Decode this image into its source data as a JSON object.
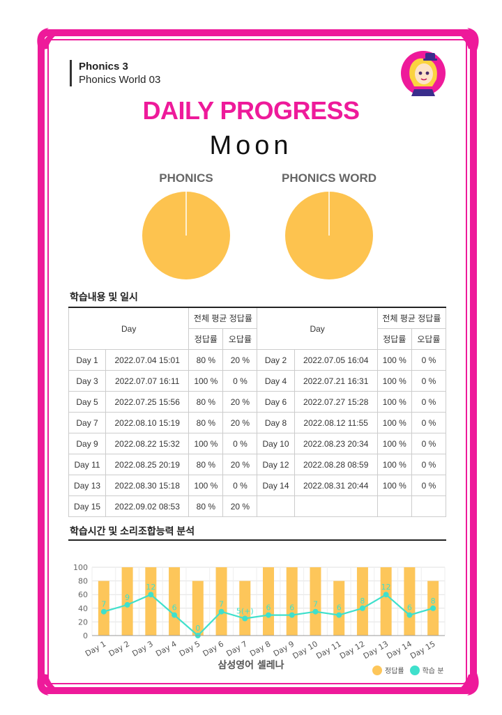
{
  "header": {
    "book_title": "Phonics 3",
    "book_subtitle": "Phonics World 03"
  },
  "title": "DAILY PROGRESS",
  "student": "Moon",
  "pies": [
    {
      "label": "PHONICS",
      "correct_pct": 100
    },
    {
      "label": "PHONICS WORD",
      "correct_pct": 100
    }
  ],
  "section1_title": "학습내용 및 일시",
  "table": {
    "day_header": "Day",
    "avg_header": "전체 평균 정답률",
    "correct_header": "정답률",
    "wrong_header": "오답률",
    "rows": [
      [
        {
          "day": "Day 1",
          "date": "2022.07.04 15:01",
          "correct": "80 %",
          "wrong": "20 %"
        },
        {
          "day": "Day 2",
          "date": "2022.07.05 16:04",
          "correct": "100 %",
          "wrong": "0 %"
        }
      ],
      [
        {
          "day": "Day 3",
          "date": "2022.07.07 16:11",
          "correct": "100 %",
          "wrong": "0 %"
        },
        {
          "day": "Day 4",
          "date": "2022.07.21 16:31",
          "correct": "100 %",
          "wrong": "0 %"
        }
      ],
      [
        {
          "day": "Day 5",
          "date": "2022.07.25 15:56",
          "correct": "80 %",
          "wrong": "20 %"
        },
        {
          "day": "Day 6",
          "date": "2022.07.27 15:28",
          "correct": "100 %",
          "wrong": "0 %"
        }
      ],
      [
        {
          "day": "Day 7",
          "date": "2022.08.10 15:19",
          "correct": "80 %",
          "wrong": "20 %"
        },
        {
          "day": "Day 8",
          "date": "2022.08.12 11:55",
          "correct": "100 %",
          "wrong": "0 %"
        }
      ],
      [
        {
          "day": "Day 9",
          "date": "2022.08.22 15:32",
          "correct": "100 %",
          "wrong": "0 %"
        },
        {
          "day": "Day 10",
          "date": "2022.08.23 20:34",
          "correct": "100 %",
          "wrong": "0 %"
        }
      ],
      [
        {
          "day": "Day 11",
          "date": "2022.08.25 20:19",
          "correct": "80 %",
          "wrong": "20 %"
        },
        {
          "day": "Day 12",
          "date": "2022.08.28 08:59",
          "correct": "100 %",
          "wrong": "0 %"
        }
      ],
      [
        {
          "day": "Day 13",
          "date": "2022.08.30 15:18",
          "correct": "100 %",
          "wrong": "0 %"
        },
        {
          "day": "Day 14",
          "date": "2022.08.31 20:44",
          "correct": "100 %",
          "wrong": "0 %"
        }
      ],
      [
        {
          "day": "Day 15",
          "date": "2022.09.02 08:53",
          "correct": "80 %",
          "wrong": "20 %"
        },
        {
          "day": "",
          "date": "",
          "correct": "",
          "wrong": ""
        }
      ]
    ]
  },
  "section2_title": "학습시간 및 소리조합능력 분석",
  "chart_data": {
    "type": "bar",
    "categories": [
      "Day 1",
      "Day 2",
      "Day 3",
      "Day 4",
      "Day 5",
      "Day 6",
      "Day 7",
      "Day 8",
      "Day 9",
      "Day 10",
      "Day 11",
      "Day 12",
      "Day 13",
      "Day 14",
      "Day 15"
    ],
    "series": [
      {
        "name": "정답률",
        "type": "bar",
        "values": [
          80,
          100,
          100,
          100,
          80,
          100,
          80,
          100,
          100,
          100,
          80,
          100,
          100,
          100,
          80
        ]
      },
      {
        "name": "학습 분",
        "type": "line",
        "values": [
          7,
          9,
          12,
          6,
          0,
          7,
          5,
          6,
          6,
          7,
          6,
          8,
          12,
          6,
          8
        ],
        "labels": [
          "7",
          "9",
          "12",
          "6",
          "0",
          "7",
          "5(+)",
          "6",
          "6",
          "7",
          "6",
          "8",
          "12",
          "6",
          "8"
        ]
      }
    ],
    "ylim": [
      0,
      100
    ],
    "yticks": [
      0,
      20,
      40,
      60,
      80,
      100
    ],
    "grid": true,
    "legend": "bottom-right"
  },
  "colors": {
    "accent": "#ee1a9a",
    "bar": "#fdc65a",
    "line": "#3fe0cc",
    "pie": "#fdc34f"
  },
  "brand": "삼성영어 셀레나",
  "legend": {
    "correct": "정답률",
    "minutes": "학습 분"
  }
}
